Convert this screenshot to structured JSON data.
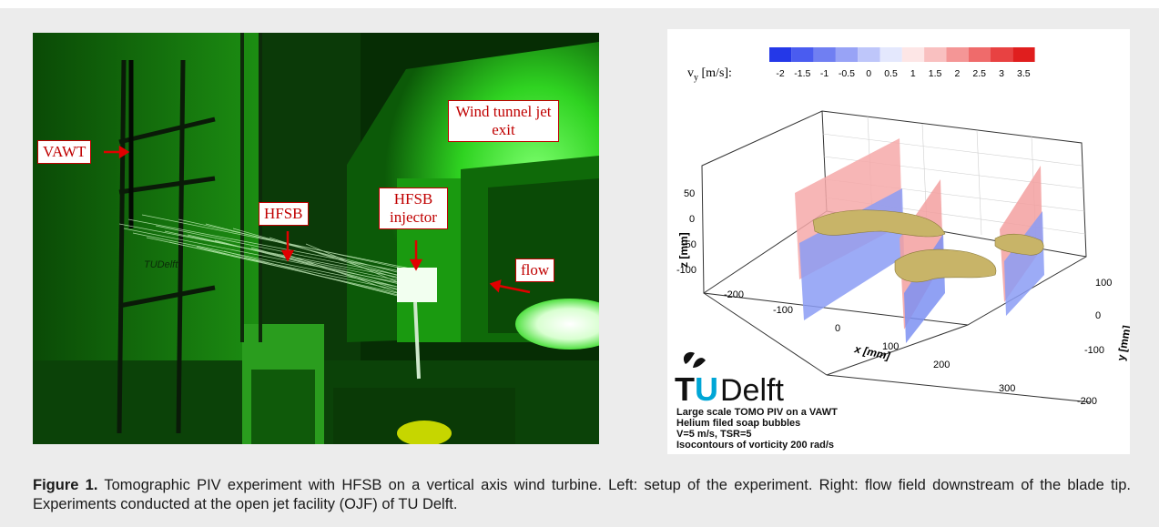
{
  "photo": {
    "labels": {
      "vawt": "VAWT",
      "hfsb": "HFSB",
      "injector": "HFSB injector",
      "wind_tunnel": "Wind tunnel jet exit",
      "flow": "flow"
    },
    "tudelft_mark": "TUDelft"
  },
  "plot": {
    "colorbar": {
      "label": "v",
      "label_sub": "y",
      "label_unit": " [m/s]:",
      "ticks": [
        "-2",
        "-1.5",
        "-1",
        "-0.5",
        "0",
        "0.5",
        "1",
        "1.5",
        "2",
        "2.5",
        "3",
        "3.5"
      ],
      "colors": [
        "#2438e8",
        "#4a5cf0",
        "#707ff2",
        "#98a3f6",
        "#bec6fa",
        "#e4e8fd",
        "#fde6e6",
        "#f9c0c0",
        "#f49696",
        "#ef6b6b",
        "#e84242",
        "#e01e1e"
      ]
    },
    "z_axis": {
      "label": "z [mm]",
      "ticks": [
        "50",
        "0",
        "-50",
        "-100"
      ]
    },
    "x_axis": {
      "label": "x [mm]",
      "ticks": [
        "-200",
        "-100",
        "0",
        "100",
        "200",
        "300"
      ]
    },
    "y_axis": {
      "label": "y [mm]",
      "ticks": [
        "100",
        "0",
        "-100",
        "-200"
      ]
    },
    "logo": {
      "t": "T",
      "u": "U",
      "delft": "Delft"
    },
    "info_lines": [
      "Large scale TOMO PIV on a VAWT",
      "Helium filed soap bubbles",
      "V=5 m/s, TSR=5",
      "Isocontours of vorticity 200 rad/s"
    ]
  },
  "caption": {
    "bold": "Figure 1.",
    "text": " Tomographic PIV experiment with HFSB on a vertical axis wind turbine. Left: setup of the experiment. Right: flow field downstream of the blade tip. Experiments conducted at the open jet facility (OJF) of TU Delft."
  }
}
